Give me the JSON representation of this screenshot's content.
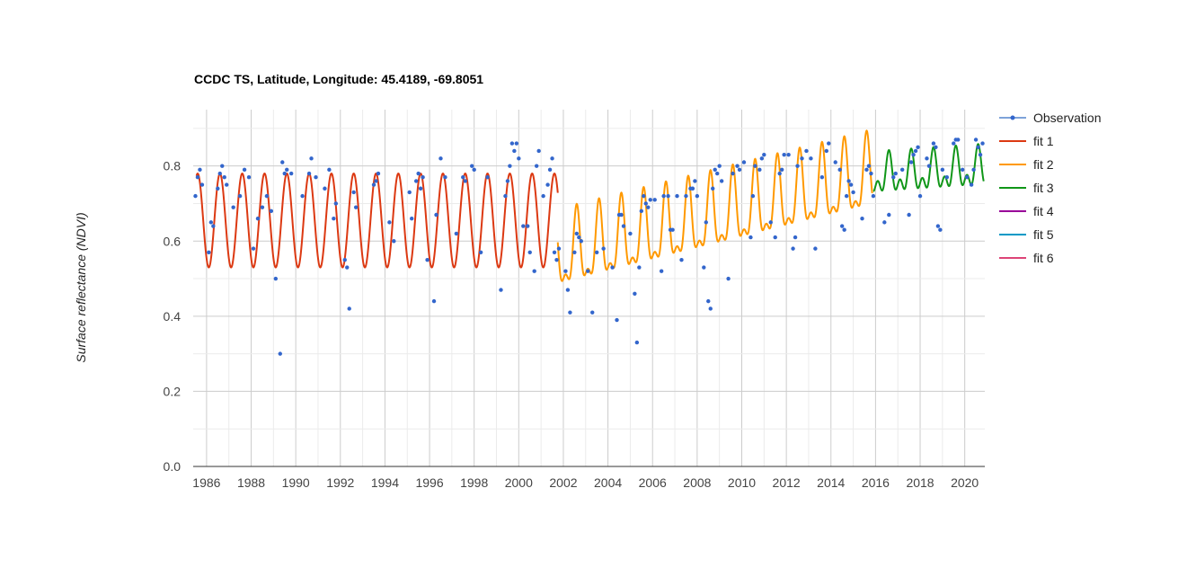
{
  "chart_data": {
    "type": "line",
    "title": "CCDC TS, Latitude, Longitude: 45.4189, -69.8051",
    "xlabel": "",
    "ylabel": "Surface reflectance (NDVI)",
    "xlim": [
      1985.4,
      2020.9
    ],
    "ylim": [
      0,
      0.95
    ],
    "x_ticks": [
      "1986",
      "1988",
      "1990",
      "1992",
      "1994",
      "1996",
      "1998",
      "2000",
      "2002",
      "2004",
      "2006",
      "2008",
      "2010",
      "2012",
      "2014",
      "2016",
      "2018",
      "2020"
    ],
    "y_ticks": [
      "0.0",
      "0.2",
      "0.4",
      "0.6",
      "0.8"
    ],
    "grid": true,
    "legend_position": "right",
    "legend": [
      "Observation",
      "fit 1",
      "fit 2",
      "fit 3",
      "fit 4",
      "fit 5",
      "fit 6"
    ],
    "series": [
      {
        "name": "Observation",
        "kind": "scatter",
        "color": "#3366cc",
        "points": [
          [
            1985.5,
            0.72
          ],
          [
            1985.6,
            0.77
          ],
          [
            1985.7,
            0.79
          ],
          [
            1985.8,
            0.75
          ],
          [
            1986.1,
            0.57
          ],
          [
            1986.2,
            0.65
          ],
          [
            1986.3,
            0.64
          ],
          [
            1986.5,
            0.74
          ],
          [
            1986.6,
            0.78
          ],
          [
            1986.7,
            0.8
          ],
          [
            1986.8,
            0.77
          ],
          [
            1986.9,
            0.75
          ],
          [
            1987.2,
            0.69
          ],
          [
            1987.5,
            0.72
          ],
          [
            1987.7,
            0.79
          ],
          [
            1987.9,
            0.77
          ],
          [
            1988.1,
            0.58
          ],
          [
            1988.3,
            0.66
          ],
          [
            1988.5,
            0.69
          ],
          [
            1988.7,
            0.72
          ],
          [
            1988.9,
            0.68
          ],
          [
            1989.1,
            0.5
          ],
          [
            1989.3,
            0.3
          ],
          [
            1989.4,
            0.81
          ],
          [
            1989.5,
            0.78
          ],
          [
            1989.6,
            0.79
          ],
          [
            1989.8,
            0.78
          ],
          [
            1990.3,
            0.72
          ],
          [
            1990.6,
            0.78
          ],
          [
            1990.7,
            0.82
          ],
          [
            1990.9,
            0.77
          ],
          [
            1991.3,
            0.74
          ],
          [
            1991.5,
            0.79
          ],
          [
            1991.7,
            0.66
          ],
          [
            1991.8,
            0.7
          ],
          [
            1992.2,
            0.55
          ],
          [
            1992.3,
            0.53
          ],
          [
            1992.4,
            0.42
          ],
          [
            1992.6,
            0.73
          ],
          [
            1992.7,
            0.69
          ],
          [
            1993.5,
            0.75
          ],
          [
            1993.6,
            0.76
          ],
          [
            1993.7,
            0.78
          ],
          [
            1994.2,
            0.65
          ],
          [
            1994.4,
            0.6
          ],
          [
            1995.1,
            0.73
          ],
          [
            1995.2,
            0.66
          ],
          [
            1995.4,
            0.76
          ],
          [
            1995.5,
            0.78
          ],
          [
            1995.6,
            0.74
          ],
          [
            1995.7,
            0.77
          ],
          [
            1995.9,
            0.55
          ],
          [
            1996.2,
            0.44
          ],
          [
            1996.3,
            0.67
          ],
          [
            1996.5,
            0.82
          ],
          [
            1996.7,
            0.77
          ],
          [
            1997.2,
            0.62
          ],
          [
            1997.5,
            0.77
          ],
          [
            1997.6,
            0.76
          ],
          [
            1997.9,
            0.8
          ],
          [
            1998.0,
            0.79
          ],
          [
            1998.3,
            0.57
          ],
          [
            1998.6,
            0.77
          ],
          [
            1999.2,
            0.47
          ],
          [
            1999.4,
            0.72
          ],
          [
            1999.5,
            0.76
          ],
          [
            1999.6,
            0.8
          ],
          [
            1999.7,
            0.86
          ],
          [
            1999.8,
            0.84
          ],
          [
            1999.9,
            0.86
          ],
          [
            2000.0,
            0.82
          ],
          [
            2000.2,
            0.64
          ],
          [
            2000.4,
            0.64
          ],
          [
            2000.5,
            0.57
          ],
          [
            2000.7,
            0.52
          ],
          [
            2000.8,
            0.8
          ],
          [
            2000.9,
            0.84
          ],
          [
            2001.1,
            0.72
          ],
          [
            2001.3,
            0.75
          ],
          [
            2001.4,
            0.79
          ],
          [
            2001.5,
            0.82
          ],
          [
            2001.6,
            0.57
          ],
          [
            2001.7,
            0.55
          ],
          [
            2001.8,
            0.58
          ],
          [
            2002.1,
            0.52
          ],
          [
            2002.2,
            0.47
          ],
          [
            2002.3,
            0.41
          ],
          [
            2002.5,
            0.57
          ],
          [
            2002.6,
            0.62
          ],
          [
            2002.7,
            0.61
          ],
          [
            2002.8,
            0.6
          ],
          [
            2003.1,
            0.52
          ],
          [
            2003.3,
            0.41
          ],
          [
            2003.5,
            0.57
          ],
          [
            2003.8,
            0.58
          ],
          [
            2004.2,
            0.53
          ],
          [
            2004.4,
            0.39
          ],
          [
            2004.5,
            0.67
          ],
          [
            2004.6,
            0.67
          ],
          [
            2004.7,
            0.64
          ],
          [
            2005.0,
            0.62
          ],
          [
            2005.2,
            0.46
          ],
          [
            2005.3,
            0.33
          ],
          [
            2005.4,
            0.53
          ],
          [
            2005.5,
            0.68
          ],
          [
            2005.6,
            0.72
          ],
          [
            2005.7,
            0.7
          ],
          [
            2005.8,
            0.69
          ],
          [
            2005.9,
            0.71
          ],
          [
            2006.1,
            0.71
          ],
          [
            2006.4,
            0.52
          ],
          [
            2006.5,
            0.72
          ],
          [
            2006.7,
            0.72
          ],
          [
            2006.8,
            0.63
          ],
          [
            2006.9,
            0.63
          ],
          [
            2007.1,
            0.72
          ],
          [
            2007.3,
            0.55
          ],
          [
            2007.5,
            0.72
          ],
          [
            2007.7,
            0.74
          ],
          [
            2007.8,
            0.74
          ],
          [
            2007.9,
            0.76
          ],
          [
            2008.0,
            0.72
          ],
          [
            2008.3,
            0.53
          ],
          [
            2008.4,
            0.65
          ],
          [
            2008.5,
            0.44
          ],
          [
            2008.6,
            0.42
          ],
          [
            2008.7,
            0.74
          ],
          [
            2008.8,
            0.79
          ],
          [
            2008.9,
            0.78
          ],
          [
            2009.0,
            0.8
          ],
          [
            2009.1,
            0.76
          ],
          [
            2009.4,
            0.5
          ],
          [
            2009.6,
            0.78
          ],
          [
            2009.8,
            0.8
          ],
          [
            2009.9,
            0.79
          ],
          [
            2010.1,
            0.81
          ],
          [
            2010.4,
            0.61
          ],
          [
            2010.5,
            0.72
          ],
          [
            2010.6,
            0.8
          ],
          [
            2010.8,
            0.79
          ],
          [
            2010.9,
            0.82
          ],
          [
            2011.0,
            0.83
          ],
          [
            2011.3,
            0.65
          ],
          [
            2011.5,
            0.61
          ],
          [
            2011.7,
            0.78
          ],
          [
            2011.8,
            0.79
          ],
          [
            2011.9,
            0.83
          ],
          [
            2012.1,
            0.83
          ],
          [
            2012.3,
            0.58
          ],
          [
            2012.4,
            0.61
          ],
          [
            2012.5,
            0.8
          ],
          [
            2012.7,
            0.82
          ],
          [
            2012.9,
            0.84
          ],
          [
            2013.1,
            0.82
          ],
          [
            2013.3,
            0.58
          ],
          [
            2013.6,
            0.77
          ],
          [
            2013.8,
            0.84
          ],
          [
            2013.9,
            0.86
          ],
          [
            2014.2,
            0.81
          ],
          [
            2014.4,
            0.79
          ],
          [
            2014.5,
            0.64
          ],
          [
            2014.6,
            0.63
          ],
          [
            2014.7,
            0.72
          ],
          [
            2014.8,
            0.76
          ],
          [
            2014.9,
            0.75
          ],
          [
            2015.0,
            0.73
          ],
          [
            2015.4,
            0.66
          ],
          [
            2015.6,
            0.79
          ],
          [
            2015.7,
            0.8
          ],
          [
            2015.8,
            0.78
          ],
          [
            2015.9,
            0.72
          ],
          [
            2016.4,
            0.65
          ],
          [
            2016.6,
            0.67
          ],
          [
            2016.8,
            0.77
          ],
          [
            2016.9,
            0.78
          ],
          [
            2017.2,
            0.79
          ],
          [
            2017.5,
            0.67
          ],
          [
            2017.6,
            0.81
          ],
          [
            2017.7,
            0.83
          ],
          [
            2017.8,
            0.84
          ],
          [
            2017.9,
            0.85
          ],
          [
            2018.0,
            0.72
          ],
          [
            2018.3,
            0.82
          ],
          [
            2018.4,
            0.8
          ],
          [
            2018.6,
            0.86
          ],
          [
            2018.7,
            0.85
          ],
          [
            2018.8,
            0.64
          ],
          [
            2018.9,
            0.63
          ],
          [
            2019.0,
            0.79
          ],
          [
            2019.2,
            0.77
          ],
          [
            2019.5,
            0.86
          ],
          [
            2019.6,
            0.87
          ],
          [
            2019.7,
            0.87
          ],
          [
            2019.9,
            0.79
          ],
          [
            2020.1,
            0.77
          ],
          [
            2020.3,
            0.75
          ],
          [
            2020.4,
            0.79
          ],
          [
            2020.5,
            0.87
          ],
          [
            2020.6,
            0.85
          ],
          [
            2020.7,
            0.83
          ],
          [
            2020.8,
            0.86
          ]
        ]
      },
      {
        "name": "fit 1",
        "kind": "line",
        "color": "#dc3912",
        "segment": {
          "start": 1985.55,
          "end": 2001.75,
          "mean": 0.655,
          "amplitude": 0.125,
          "peak": 0.6,
          "trend": 0.0
        }
      },
      {
        "name": "fit 2",
        "kind": "line",
        "color": "#ff9900",
        "segment": {
          "start": 2001.75,
          "end": 2015.85,
          "mean": 0.56,
          "amplitude": 0.09,
          "peak": 0.6,
          "trend": 0.015,
          "harmonic2": 0.04,
          "ref_year": 2002
        }
      },
      {
        "name": "fit 3",
        "kind": "line",
        "color": "#109618",
        "segment": {
          "start": 2015.9,
          "end": 2020.85,
          "mean": 0.77,
          "amplitude": 0.04,
          "peak": 0.6,
          "trend": 0.004,
          "harmonic2": 0.03,
          "ref_year": 2016
        }
      },
      {
        "name": "fit 4",
        "kind": "line",
        "color": "#990099"
      },
      {
        "name": "fit 5",
        "kind": "line",
        "color": "#0099c6"
      },
      {
        "name": "fit 6",
        "kind": "line",
        "color": "#dd4477"
      }
    ]
  }
}
